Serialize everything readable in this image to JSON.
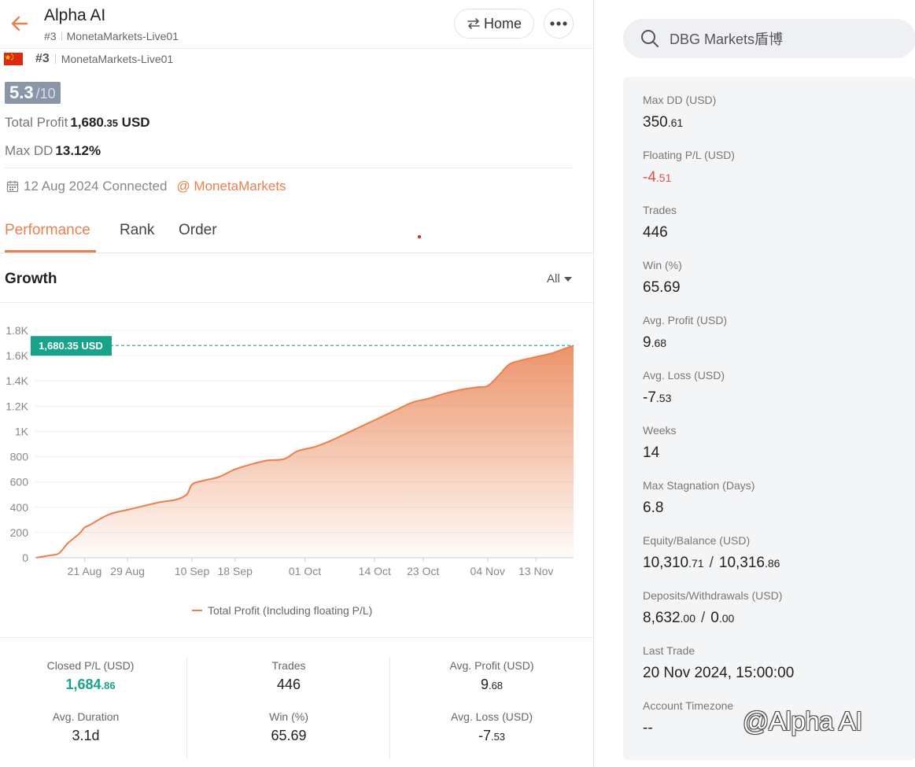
{
  "header": {
    "title": "Alpha AI",
    "rank": "#3",
    "account": "MonetaMarkets-Live01",
    "home_label": "Home",
    "back_icon": "arrow-left-icon",
    "more_icon": "ellipsis-icon",
    "accent": "#e9804f"
  },
  "profile": {
    "flag": "china-flag",
    "rank": "#3",
    "account": "MonetaMarkets-Live01",
    "score": "5.3",
    "score_max": "/10",
    "total_profit_label": "Total Profit",
    "total_profit_int": "1,680",
    "total_profit_dec": ".35",
    "total_profit_unit": "USD",
    "max_dd_label": "Max DD",
    "max_dd_value": "13.12%",
    "connected_text": "12 Aug 2024 Connected",
    "broker": "@ MonetaMarkets"
  },
  "tabs": [
    "Performance",
    "Rank",
    "Order"
  ],
  "growth": {
    "title": "Growth",
    "range": "All"
  },
  "chart_data": {
    "type": "area",
    "title": "",
    "xlabel": "",
    "ylabel": "",
    "ylim": [
      0,
      1800
    ],
    "yticks": [
      "0",
      "200",
      "400",
      "600",
      "800",
      "1K",
      "1.2K",
      "1.4K",
      "1.6K",
      "1.8K"
    ],
    "xticks": [
      "21 Aug",
      "29 Aug",
      "10 Sep",
      "18 Sep",
      "01 Oct",
      "14 Oct",
      "23 Oct",
      "04 Nov",
      "13 Nov"
    ],
    "legend": "Total Profit (Including floating P/L)",
    "last_value_label": "1,680.35 USD",
    "last_value": 1680.35,
    "color": "#e9804f",
    "series": [
      {
        "name": "Total Profit (Including floating P/L)",
        "x": [
          "12 Aug",
          "14 Aug",
          "16 Aug",
          "17 Aug",
          "18 Aug",
          "20 Aug",
          "21 Aug",
          "22 Aug",
          "24 Aug",
          "26 Aug",
          "29 Aug",
          "01 Sep",
          "04 Sep",
          "07 Sep",
          "09 Sep",
          "10 Sep",
          "12 Sep",
          "15 Sep",
          "18 Sep",
          "21 Sep",
          "24 Sep",
          "27 Sep",
          "29 Sep",
          "30 Sep",
          "03 Oct",
          "06 Oct",
          "09 Oct",
          "12 Oct",
          "15 Oct",
          "18 Oct",
          "21 Oct",
          "24 Oct",
          "27 Oct",
          "30 Oct",
          "02 Nov",
          "04 Nov",
          "06 Nov",
          "08 Nov",
          "10 Nov",
          "13 Nov",
          "16 Nov",
          "18 Nov",
          "20 Nov"
        ],
        "y": [
          0,
          15,
          30,
          70,
          120,
          190,
          240,
          260,
          310,
          350,
          380,
          410,
          440,
          460,
          500,
          580,
          610,
          640,
          700,
          740,
          770,
          780,
          830,
          850,
          880,
          930,
          990,
          1050,
          1110,
          1170,
          1230,
          1260,
          1300,
          1330,
          1350,
          1360,
          1440,
          1530,
          1560,
          1590,
          1620,
          1650,
          1680
        ]
      }
    ]
  },
  "summary": {
    "closed_pl_label": "Closed P/L (USD)",
    "closed_pl_int": "1,684",
    "closed_pl_dec": ".86",
    "trades_label": "Trades",
    "trades": "446",
    "avg_profit_label": "Avg. Profit (USD)",
    "avg_profit_int": "9",
    "avg_profit_dec": ".68",
    "avg_duration_label": "Avg. Duration",
    "avg_duration": "3.1d",
    "win_label": "Win (%)",
    "win": "65.69",
    "avg_loss_label": "Avg. Loss (USD)",
    "avg_loss_int": "-7",
    "avg_loss_dec": ".53",
    "positive_color": "#1aa389"
  },
  "search": {
    "placeholder": "DBG Markets盾博",
    "icon": "search-icon"
  },
  "side_stats": {
    "max_dd_label": "Max DD (USD)",
    "max_dd_int": "350",
    "max_dd_dec": ".61",
    "floating_label": "Floating P/L (USD)",
    "floating_int": "-4",
    "floating_dec": ".51",
    "trades_label": "Trades",
    "trades": "446",
    "win_label": "Win (%)",
    "win": "65.69",
    "avg_profit_label": "Avg. Profit (USD)",
    "avg_profit_int": "9",
    "avg_profit_dec": ".68",
    "avg_loss_label": "Avg. Loss (USD)",
    "avg_loss_int": "-7",
    "avg_loss_dec": ".53",
    "weeks_label": "Weeks",
    "weeks": "14",
    "stagnation_label": "Max Stagnation (Days)",
    "stagnation": "6.8",
    "equity_label": "Equity/Balance (USD)",
    "equity_int": "10,310",
    "equity_dec": ".71",
    "balance_int": "10,316",
    "balance_dec": ".86",
    "deposits_label": "Deposits/Withdrawals (USD)",
    "deposits_int": "8,632",
    "deposits_dec": ".00",
    "withdrawals_int": "0",
    "withdrawals_dec": ".00",
    "last_trade_label": "Last Trade",
    "last_trade": "20 Nov 2024, 15:00:00",
    "timezone_label": "Account Timezone",
    "timezone": "--",
    "negative_color": "#d9534f"
  },
  "watermark": "@Alpha AI"
}
